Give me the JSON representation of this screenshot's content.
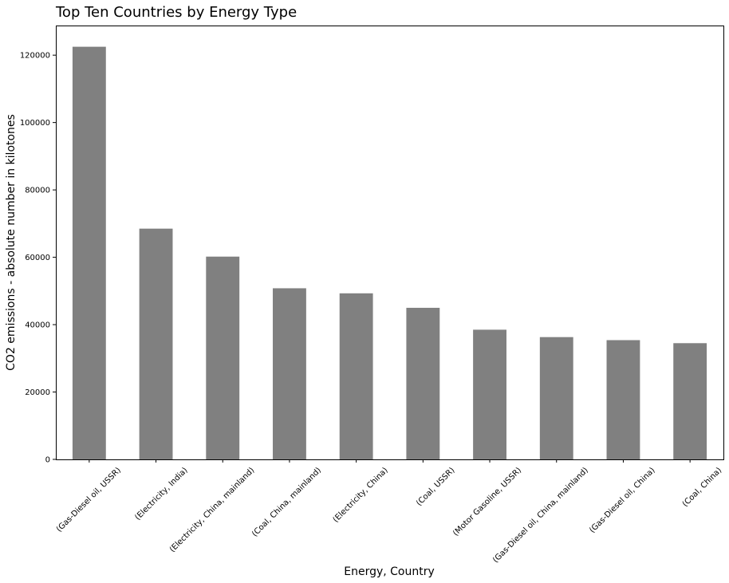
{
  "chart_data": {
    "type": "bar",
    "title": "Top Ten Countries by Energy Type",
    "xlabel": "Energy, Country",
    "ylabel": "CO2 emissions - absolute number in kilotones",
    "categories": [
      "(Gas-Diesel oil, USSR)",
      "(Electricity, India)",
      "(Electricity, China, mainland)",
      "(Coal, China, mainland)",
      "(Electricity, China)",
      "(Coal, USSR)",
      "(Motor Gasoline, USSR)",
      "(Gas-Diesel oil, China, mainland)",
      "(Gas-Diesel oil, China)",
      "(Coal, China)"
    ],
    "values": [
      122500,
      68500,
      60200,
      50800,
      49300,
      45000,
      38500,
      36300,
      35400,
      34500
    ],
    "ylim": [
      0,
      128800
    ],
    "yticks": [
      0,
      20000,
      40000,
      60000,
      80000,
      100000,
      120000
    ],
    "bar_color": "#808080",
    "grid": false,
    "legend": "none"
  }
}
